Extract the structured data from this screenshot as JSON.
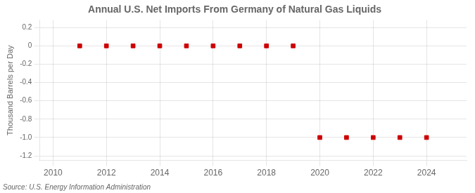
{
  "chart_data": {
    "type": "scatter",
    "title": "Annual U.S. Net Imports From Germany of Natural Gas Liquids",
    "y_label": "Thousand Barrels per Day",
    "annotation": "Source: U.S. Energy Information Administration",
    "x": [
      2011,
      2012,
      2013,
      2014,
      2015,
      2016,
      2017,
      2018,
      2019,
      2020,
      2021,
      2022,
      2023,
      2024
    ],
    "values": [
      0,
      0,
      0,
      0,
      0,
      0,
      0,
      0,
      0,
      -1,
      -1,
      -1,
      -1,
      -1
    ],
    "color": "#cc0000",
    "marker": "square",
    "xlim": [
      2009.5,
      2025.5
    ],
    "xticks": [
      2010,
      2012,
      2014,
      2016,
      2018,
      2020,
      2022,
      2024
    ],
    "ylim": [
      -1.25,
      0.28
    ],
    "yticks": [
      0.2,
      0,
      -0.2,
      -0.4,
      -0.6,
      -0.8,
      {
        "value": -1.0,
        "label": "-1.0"
      },
      -1.2
    ],
    "grid": true
  }
}
